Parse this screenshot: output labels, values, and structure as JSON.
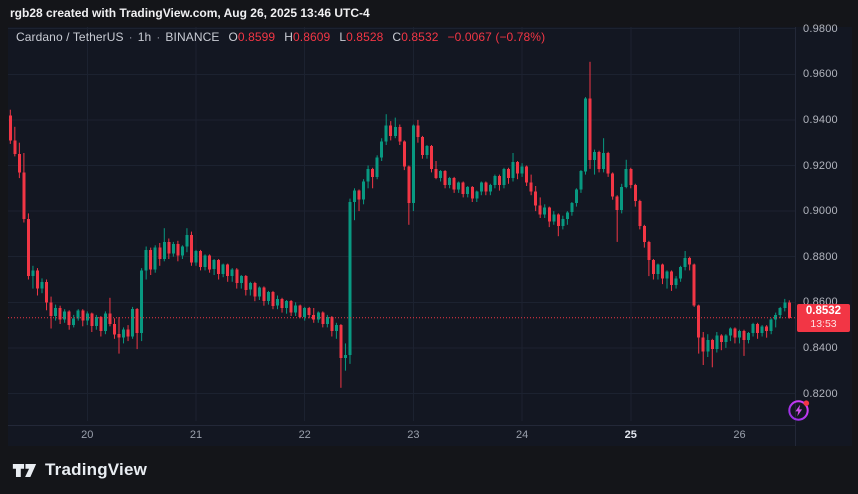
{
  "attribution": {
    "text": "rgb28 created with TradingView.com, Aug 26, 2025 13:46 UTC-4"
  },
  "legend": {
    "symbol": "Cardano / TetherUS",
    "separator": "·",
    "interval": "1h",
    "exchange": "BINANCE",
    "open_label": "O",
    "open": "0.8599",
    "high_label": "H",
    "high": "0.8609",
    "low_label": "L",
    "low": "0.8528",
    "close_label": "C",
    "close": "0.8532",
    "change": "−0.0067 (−0.78%)"
  },
  "price_axis": {
    "ticks": [
      {
        "label": "0.9800",
        "value": 0.98
      },
      {
        "label": "0.9600",
        "value": 0.96
      },
      {
        "label": "0.9400",
        "value": 0.94
      },
      {
        "label": "0.9200",
        "value": 0.92
      },
      {
        "label": "0.9000",
        "value": 0.9
      },
      {
        "label": "0.8800",
        "value": 0.88
      },
      {
        "label": "0.8600",
        "value": 0.86
      },
      {
        "label": "0.8400",
        "value": 0.84
      },
      {
        "label": "0.8200",
        "value": 0.82
      }
    ],
    "last_price": {
      "price": "0.8532",
      "countdown": "13:53",
      "value": 0.8532
    }
  },
  "time_axis": {
    "labels": [
      {
        "text": "20",
        "candle_index": 17,
        "emphasized": false
      },
      {
        "text": "21",
        "candle_index": 41,
        "emphasized": false
      },
      {
        "text": "22",
        "candle_index": 65,
        "emphasized": false
      },
      {
        "text": "23",
        "candle_index": 89,
        "emphasized": false
      },
      {
        "text": "24",
        "candle_index": 113,
        "emphasized": false
      },
      {
        "text": "25",
        "candle_index": 137,
        "emphasized": true
      },
      {
        "text": "26",
        "candle_index": 161,
        "emphasized": false
      }
    ]
  },
  "branding": {
    "name": "TradingView"
  },
  "colors": {
    "up": "#089981",
    "down": "#f23645",
    "grid": "#1c2230",
    "pane_bg": "#131722",
    "frame_bg": "#141519",
    "axis_text": "#b2b5be",
    "badge_bg": "#f23645",
    "boost_purple": "#c94ae0",
    "boost_dot": "#f23645"
  },
  "chart_data": {
    "type": "candlestick",
    "title": "Cardano / TetherUS · 1h · BINANCE",
    "interval": "1h",
    "grid": true,
    "ylim": [
      0.80619,
      0.98075
    ],
    "x_tick_labels": [
      "20",
      "21",
      "22",
      "23",
      "24",
      "25",
      "26"
    ],
    "last_close": 0.8532,
    "ohlc_current": {
      "open": 0.8599,
      "high": 0.8609,
      "low": 0.8528,
      "close": 0.8532,
      "change": -0.0067,
      "change_pct": -0.78
    },
    "candles": [
      [
        0.942,
        0.9445,
        0.9295,
        0.931
      ],
      [
        0.931,
        0.937,
        0.924,
        0.925
      ],
      [
        0.925,
        0.93,
        0.9145,
        0.917
      ],
      [
        0.917,
        0.9255,
        0.895,
        0.8965
      ],
      [
        0.8965,
        0.899,
        0.87,
        0.8715
      ],
      [
        0.8715,
        0.876,
        0.866,
        0.874
      ],
      [
        0.874,
        0.875,
        0.863,
        0.866
      ],
      [
        0.866,
        0.8705,
        0.864,
        0.869
      ],
      [
        0.869,
        0.87,
        0.8565,
        0.86
      ],
      [
        0.86,
        0.8625,
        0.8485,
        0.854
      ],
      [
        0.854,
        0.859,
        0.852,
        0.8575
      ],
      [
        0.8575,
        0.8585,
        0.8505,
        0.8525
      ],
      [
        0.8525,
        0.857,
        0.851,
        0.856
      ],
      [
        0.856,
        0.8565,
        0.848,
        0.85
      ],
      [
        0.85,
        0.8545,
        0.849,
        0.853
      ],
      [
        0.853,
        0.857,
        0.852,
        0.8565
      ],
      [
        0.8565,
        0.857,
        0.8495,
        0.852
      ],
      [
        0.852,
        0.856,
        0.85,
        0.855
      ],
      [
        0.855,
        0.8555,
        0.847,
        0.8495
      ],
      [
        0.8495,
        0.8545,
        0.848,
        0.8535
      ],
      [
        0.8535,
        0.854,
        0.845,
        0.8475
      ],
      [
        0.8475,
        0.856,
        0.846,
        0.855
      ],
      [
        0.855,
        0.862,
        0.8495,
        0.8505
      ],
      [
        0.8505,
        0.853,
        0.844,
        0.846
      ],
      [
        0.846,
        0.8535,
        0.8375,
        0.8445
      ],
      [
        0.8445,
        0.849,
        0.842,
        0.848
      ],
      [
        0.848,
        0.85,
        0.843,
        0.845
      ],
      [
        0.845,
        0.858,
        0.844,
        0.857
      ],
      [
        0.857,
        0.8575,
        0.8395,
        0.8465
      ],
      [
        0.8465,
        0.875,
        0.843,
        0.874
      ],
      [
        0.874,
        0.8845,
        0.87,
        0.883
      ],
      [
        0.883,
        0.884,
        0.872,
        0.8745
      ],
      [
        0.8745,
        0.885,
        0.873,
        0.884
      ],
      [
        0.884,
        0.886,
        0.876,
        0.879
      ],
      [
        0.879,
        0.8925,
        0.878,
        0.8865
      ],
      [
        0.8865,
        0.888,
        0.879,
        0.8815
      ],
      [
        0.8815,
        0.8865,
        0.88,
        0.8855
      ],
      [
        0.8855,
        0.887,
        0.878,
        0.8805
      ],
      [
        0.8805,
        0.885,
        0.879,
        0.8845
      ],
      [
        0.8845,
        0.8925,
        0.882,
        0.8895
      ],
      [
        0.8895,
        0.891,
        0.876,
        0.8775
      ],
      [
        0.8775,
        0.883,
        0.876,
        0.8825
      ],
      [
        0.8825,
        0.883,
        0.874,
        0.8755
      ],
      [
        0.8755,
        0.881,
        0.874,
        0.8805
      ],
      [
        0.8805,
        0.881,
        0.873,
        0.8745
      ],
      [
        0.8745,
        0.879,
        0.872,
        0.8785
      ],
      [
        0.8785,
        0.879,
        0.87,
        0.8725
      ],
      [
        0.8725,
        0.877,
        0.871,
        0.8765
      ],
      [
        0.8765,
        0.877,
        0.869,
        0.8715
      ],
      [
        0.8715,
        0.875,
        0.869,
        0.8745
      ],
      [
        0.8745,
        0.875,
        0.866,
        0.8685
      ],
      [
        0.8685,
        0.872,
        0.866,
        0.8715
      ],
      [
        0.8715,
        0.872,
        0.863,
        0.8655
      ],
      [
        0.8655,
        0.869,
        0.863,
        0.8685
      ],
      [
        0.8685,
        0.869,
        0.8605,
        0.8625
      ],
      [
        0.8625,
        0.867,
        0.861,
        0.8665
      ],
      [
        0.8665,
        0.867,
        0.8585,
        0.8605
      ],
      [
        0.8605,
        0.865,
        0.859,
        0.8645
      ],
      [
        0.8645,
        0.865,
        0.857,
        0.8585
      ],
      [
        0.8585,
        0.863,
        0.857,
        0.8615
      ],
      [
        0.8615,
        0.862,
        0.8555,
        0.8575
      ],
      [
        0.8575,
        0.861,
        0.855,
        0.8605
      ],
      [
        0.8605,
        0.861,
        0.854,
        0.8555
      ],
      [
        0.8555,
        0.86,
        0.854,
        0.8585
      ],
      [
        0.8585,
        0.859,
        0.853,
        0.8535
      ],
      [
        0.8535,
        0.858,
        0.852,
        0.8575
      ],
      [
        0.8575,
        0.858,
        0.853,
        0.8545
      ],
      [
        0.8545,
        0.8575,
        0.851,
        0.8525
      ],
      [
        0.8525,
        0.856,
        0.851,
        0.8555
      ],
      [
        0.8555,
        0.856,
        0.849,
        0.8505
      ],
      [
        0.8505,
        0.8545,
        0.849,
        0.8535
      ],
      [
        0.8535,
        0.854,
        0.845,
        0.8475
      ],
      [
        0.8475,
        0.851,
        0.844,
        0.85
      ],
      [
        0.85,
        0.8505,
        0.8225,
        0.8355
      ],
      [
        0.8355,
        0.842,
        0.83,
        0.837
      ],
      [
        0.837,
        0.9055,
        0.833,
        0.904
      ],
      [
        0.904,
        0.91,
        0.896,
        0.909
      ],
      [
        0.909,
        0.9095,
        0.9,
        0.905
      ],
      [
        0.905,
        0.914,
        0.903,
        0.913
      ],
      [
        0.913,
        0.92,
        0.91,
        0.9185
      ],
      [
        0.9185,
        0.919,
        0.91,
        0.915
      ],
      [
        0.915,
        0.9245,
        0.914,
        0.9235
      ],
      [
        0.9235,
        0.932,
        0.922,
        0.9305
      ],
      [
        0.9305,
        0.9425,
        0.929,
        0.9375
      ],
      [
        0.9375,
        0.9395,
        0.931,
        0.933
      ],
      [
        0.933,
        0.941,
        0.932,
        0.937
      ],
      [
        0.937,
        0.938,
        0.929,
        0.9305
      ],
      [
        0.9305,
        0.931,
        0.918,
        0.9195
      ],
      [
        0.9195,
        0.92,
        0.894,
        0.9035
      ],
      [
        0.9035,
        0.938,
        0.9,
        0.9375
      ],
      [
        0.9375,
        0.94,
        0.93,
        0.9325
      ],
      [
        0.9325,
        0.933,
        0.923,
        0.9245
      ],
      [
        0.9245,
        0.929,
        0.923,
        0.9285
      ],
      [
        0.9285,
        0.929,
        0.917,
        0.9185
      ],
      [
        0.9185,
        0.922,
        0.914,
        0.9145
      ],
      [
        0.9145,
        0.918,
        0.913,
        0.9175
      ],
      [
        0.9175,
        0.918,
        0.91,
        0.9115
      ],
      [
        0.9115,
        0.915,
        0.91,
        0.9145
      ],
      [
        0.9145,
        0.915,
        0.908,
        0.9095
      ],
      [
        0.9095,
        0.913,
        0.908,
        0.9125
      ],
      [
        0.9125,
        0.913,
        0.906,
        0.9075
      ],
      [
        0.9075,
        0.911,
        0.906,
        0.9105
      ],
      [
        0.9105,
        0.911,
        0.904,
        0.9055
      ],
      [
        0.9055,
        0.909,
        0.904,
        0.9085
      ],
      [
        0.9085,
        0.913,
        0.907,
        0.9125
      ],
      [
        0.9125,
        0.913,
        0.907,
        0.9085
      ],
      [
        0.9085,
        0.912,
        0.907,
        0.9115
      ],
      [
        0.9115,
        0.916,
        0.91,
        0.9155
      ],
      [
        0.9155,
        0.916,
        0.909,
        0.9115
      ],
      [
        0.9115,
        0.919,
        0.91,
        0.9185
      ],
      [
        0.9185,
        0.919,
        0.912,
        0.9145
      ],
      [
        0.9145,
        0.9255,
        0.913,
        0.9215
      ],
      [
        0.9215,
        0.922,
        0.914,
        0.9165
      ],
      [
        0.9165,
        0.921,
        0.915,
        0.9195
      ],
      [
        0.9195,
        0.92,
        0.911,
        0.9125
      ],
      [
        0.9125,
        0.916,
        0.907,
        0.9085
      ],
      [
        0.9085,
        0.911,
        0.9,
        0.9025
      ],
      [
        0.9025,
        0.906,
        0.897,
        0.8985
      ],
      [
        0.8985,
        0.903,
        0.897,
        0.9015
      ],
      [
        0.9015,
        0.902,
        0.893,
        0.8955
      ],
      [
        0.8955,
        0.9,
        0.894,
        0.8985
      ],
      [
        0.8985,
        0.899,
        0.889,
        0.8935
      ],
      [
        0.8935,
        0.898,
        0.892,
        0.8965
      ],
      [
        0.8965,
        0.9,
        0.894,
        0.8995
      ],
      [
        0.8995,
        0.904,
        0.898,
        0.9035
      ],
      [
        0.9035,
        0.91,
        0.902,
        0.9095
      ],
      [
        0.9095,
        0.918,
        0.908,
        0.9175
      ],
      [
        0.9175,
        0.95,
        0.916,
        0.9495
      ],
      [
        0.9495,
        0.9655,
        0.9185,
        0.9225
      ],
      [
        0.9225,
        0.927,
        0.916,
        0.926
      ],
      [
        0.926,
        0.9265,
        0.917,
        0.9185
      ],
      [
        0.9185,
        0.932,
        0.917,
        0.9255
      ],
      [
        0.9255,
        0.926,
        0.915,
        0.9165
      ],
      [
        0.9165,
        0.917,
        0.905,
        0.9065
      ],
      [
        0.9065,
        0.907,
        0.8865,
        0.9005
      ],
      [
        0.9005,
        0.912,
        0.899,
        0.9105
      ],
      [
        0.9105,
        0.9225,
        0.91,
        0.9185
      ],
      [
        0.9185,
        0.919,
        0.91,
        0.9115
      ],
      [
        0.9115,
        0.912,
        0.902,
        0.9045
      ],
      [
        0.9045,
        0.905,
        0.892,
        0.8935
      ],
      [
        0.8935,
        0.894,
        0.884,
        0.8865
      ],
      [
        0.8865,
        0.887,
        0.8715,
        0.8785
      ],
      [
        0.8785,
        0.879,
        0.87,
        0.8725
      ],
      [
        0.8725,
        0.877,
        0.87,
        0.8765
      ],
      [
        0.8765,
        0.877,
        0.868,
        0.8705
      ],
      [
        0.8705,
        0.874,
        0.866,
        0.8735
      ],
      [
        0.8735,
        0.874,
        0.865,
        0.8675
      ],
      [
        0.8675,
        0.8715,
        0.866,
        0.8705
      ],
      [
        0.8705,
        0.876,
        0.869,
        0.8755
      ],
      [
        0.8755,
        0.8825,
        0.874,
        0.8795
      ],
      [
        0.8795,
        0.88,
        0.874,
        0.8765
      ],
      [
        0.8765,
        0.877,
        0.858,
        0.8585
      ],
      [
        0.8585,
        0.859,
        0.8375,
        0.8445
      ],
      [
        0.8445,
        0.847,
        0.8325,
        0.8385
      ],
      [
        0.8385,
        0.846,
        0.836,
        0.8435
      ],
      [
        0.8435,
        0.844,
        0.8315,
        0.8395
      ],
      [
        0.8395,
        0.847,
        0.838,
        0.8455
      ],
      [
        0.8455,
        0.846,
        0.839,
        0.8425
      ],
      [
        0.8425,
        0.846,
        0.84,
        0.8455
      ],
      [
        0.8455,
        0.849,
        0.843,
        0.8485
      ],
      [
        0.8485,
        0.849,
        0.842,
        0.8445
      ],
      [
        0.8445,
        0.848,
        0.842,
        0.8475
      ],
      [
        0.8475,
        0.848,
        0.8365,
        0.8435
      ],
      [
        0.8435,
        0.847,
        0.842,
        0.8465
      ],
      [
        0.8465,
        0.851,
        0.845,
        0.8505
      ],
      [
        0.8505,
        0.851,
        0.844,
        0.8465
      ],
      [
        0.8465,
        0.85,
        0.845,
        0.8495
      ],
      [
        0.8495,
        0.85,
        0.8445,
        0.8475
      ],
      [
        0.8475,
        0.853,
        0.846,
        0.8525
      ],
      [
        0.8525,
        0.8555,
        0.849,
        0.8545
      ],
      [
        0.8545,
        0.858,
        0.853,
        0.8575
      ],
      [
        0.8575,
        0.8615,
        0.856,
        0.8599
      ],
      [
        0.8599,
        0.8609,
        0.8528,
        0.8532
      ]
    ]
  }
}
